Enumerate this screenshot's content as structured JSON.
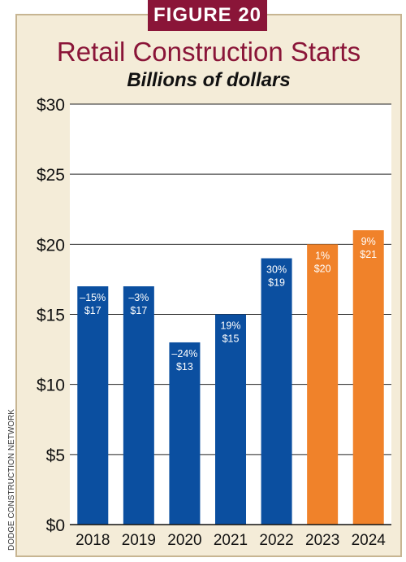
{
  "figure_label": "FIGURE 20",
  "source_credit": "DODGE CONSTRUCTION NETWORK",
  "colors": {
    "actual": "#0b4fa0",
    "forecast": "#f0822a",
    "title": "#8a1538",
    "panel_bg": "#f4ecd8"
  },
  "chart_data": {
    "type": "bar",
    "title": "Retail Construction Starts",
    "subtitle": "Billions of dollars",
    "xlabel": "",
    "ylabel": "",
    "ylim": [
      0,
      30
    ],
    "yticks": [
      0,
      5,
      10,
      15,
      20,
      25,
      30
    ],
    "ytick_labels": [
      "$0",
      "$5",
      "$10",
      "$15",
      "$20",
      "$25",
      "$30"
    ],
    "grid": true,
    "categories": [
      "2018",
      "2019",
      "2020",
      "2021",
      "2022",
      "2023",
      "2024"
    ],
    "values": [
      17,
      17,
      13,
      15,
      19,
      20,
      21
    ],
    "pct_labels": [
      "–15%",
      "–3%",
      "–24%",
      "19%",
      "30%",
      "1%",
      "9%"
    ],
    "value_labels": [
      "$17",
      "$17",
      "$13",
      "$15",
      "$19",
      "$20",
      "$21"
    ],
    "bar_kind": [
      "actual",
      "actual",
      "actual",
      "actual",
      "actual",
      "forecast",
      "forecast"
    ]
  }
}
